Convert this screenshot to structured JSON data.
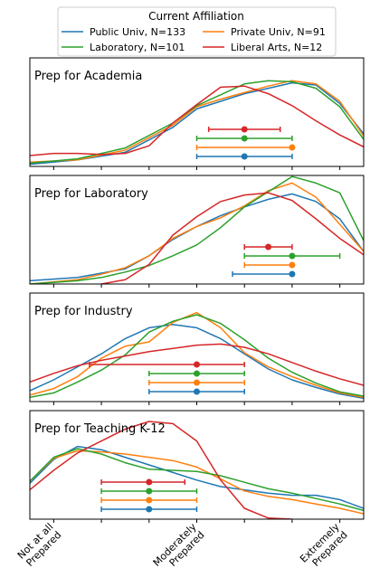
{
  "legend": {
    "title": "Current Affiliation",
    "placement": "top-center",
    "entries": [
      {
        "label": "Public Univ, N=133",
        "color": "#1f77b4"
      },
      {
        "label": "Private Univ, N=91",
        "color": "#ff7f0e"
      },
      {
        "label": "Laboratory, N=101",
        "color": "#2ca02c"
      },
      {
        "label": "Liberal Arts, N=12",
        "color": "#d62728"
      }
    ]
  },
  "chart_data": {
    "type": "line",
    "subtype": "density curves with mean and error bars, stacked panels sharing x axis",
    "xlim": [
      0.0,
      7.0
    ],
    "x_ticks": [
      0.5,
      1.5,
      2.5,
      3.5,
      4.5,
      5.5,
      6.5
    ],
    "x_tick_labels": [
      {
        "x": 0.5,
        "lines": [
          "Not at all",
          "Prepared"
        ]
      },
      {
        "x": 3.5,
        "lines": [
          "Moderately",
          "Prepared"
        ]
      },
      {
        "x": 6.5,
        "lines": [
          "Extremely",
          "Prepared"
        ]
      }
    ],
    "grid": false,
    "series_colors": {
      "Public Univ": "#1f77b4",
      "Private Univ": "#ff7f0e",
      "Laboratory": "#2ca02c",
      "Liberal Arts": "#d62728"
    },
    "panels": [
      {
        "title": "Prep for Academia",
        "ylim": [
          0,
          1
        ],
        "curves": [
          {
            "name": "Public Univ",
            "x": [
              0,
              1,
              2,
              3,
              3.5,
              4,
              4.5,
              5,
              5.5,
              6,
              6.5,
              7
            ],
            "y": [
              0.02,
              0.06,
              0.13,
              0.36,
              0.53,
              0.6,
              0.67,
              0.72,
              0.77,
              0.75,
              0.58,
              0.3
            ]
          },
          {
            "name": "Private Univ",
            "x": [
              0,
              1,
              2,
              3,
              3.5,
              4,
              4.5,
              5,
              5.5,
              6,
              6.5,
              7
            ],
            "y": [
              0.04,
              0.06,
              0.15,
              0.38,
              0.55,
              0.62,
              0.68,
              0.74,
              0.79,
              0.76,
              0.6,
              0.28
            ]
          },
          {
            "name": "Laboratory",
            "x": [
              0,
              1,
              2,
              3,
              3.5,
              4,
              4.5,
              5,
              5.5,
              6,
              6.5,
              7
            ],
            "y": [
              0.03,
              0.07,
              0.17,
              0.4,
              0.56,
              0.66,
              0.76,
              0.79,
              0.78,
              0.72,
              0.55,
              0.25
            ]
          },
          {
            "name": "Liberal Arts",
            "x": [
              0,
              0.5,
              1,
              1.5,
              2,
              2.5,
              3,
              3.5,
              4,
              4.5,
              5,
              5.5,
              6,
              6.5,
              7
            ],
            "y": [
              0.1,
              0.12,
              0.12,
              0.11,
              0.12,
              0.19,
              0.4,
              0.57,
              0.73,
              0.74,
              0.67,
              0.56,
              0.42,
              0.29,
              0.18
            ]
          }
        ],
        "markers": [
          {
            "name": "Liberal Arts",
            "mean": 4.5,
            "low": 3.75,
            "high": 5.25
          },
          {
            "name": "Laboratory",
            "mean": 4.5,
            "low": 3.5,
            "high": 5.5
          },
          {
            "name": "Private Univ",
            "mean": 5.5,
            "low": 3.5,
            "high": 5.5
          },
          {
            "name": "Public Univ",
            "mean": 4.5,
            "low": 3.5,
            "high": 5.5
          }
        ]
      },
      {
        "title": "Prep for Laboratory",
        "ylim": [
          0,
          1
        ],
        "curves": [
          {
            "name": "Public Univ",
            "x": [
              0,
              1,
              2,
              2.5,
              3,
              3.5,
              4,
              4.5,
              5,
              5.5,
              6,
              6.5,
              7
            ],
            "y": [
              0.03,
              0.06,
              0.14,
              0.26,
              0.41,
              0.53,
              0.63,
              0.71,
              0.78,
              0.83,
              0.76,
              0.6,
              0.3
            ]
          },
          {
            "name": "Private Univ",
            "x": [
              0,
              1,
              1.5,
              2,
              2.5,
              3,
              3.5,
              4,
              4.5,
              5,
              5.5,
              6,
              6.5,
              7
            ],
            "y": [
              0.0,
              0.04,
              0.09,
              0.15,
              0.26,
              0.42,
              0.53,
              0.61,
              0.72,
              0.86,
              0.93,
              0.8,
              0.55,
              0.3
            ]
          },
          {
            "name": "Laboratory",
            "x": [
              0,
              1,
              1.5,
              2,
              2.5,
              3,
              3.5,
              4,
              4.5,
              5,
              5.5,
              6,
              6.5,
              7
            ],
            "y": [
              0.0,
              0.03,
              0.06,
              0.11,
              0.17,
              0.26,
              0.36,
              0.52,
              0.71,
              0.85,
              0.99,
              0.93,
              0.84,
              0.4
            ]
          },
          {
            "name": "Liberal Arts",
            "x": [
              1.5,
              2,
              2.5,
              3,
              3.5,
              4,
              4.5,
              5,
              5.5,
              6,
              6.5,
              7
            ],
            "y": [
              0.0,
              0.04,
              0.18,
              0.45,
              0.62,
              0.76,
              0.82,
              0.84,
              0.77,
              0.6,
              0.42,
              0.27
            ]
          }
        ],
        "markers": [
          {
            "name": "Liberal Arts",
            "mean": 5.0,
            "low": 4.5,
            "high": 5.5
          },
          {
            "name": "Laboratory",
            "mean": 5.5,
            "low": 4.5,
            "high": 6.5
          },
          {
            "name": "Private Univ",
            "mean": 5.5,
            "low": 4.5,
            "high": 5.5
          },
          {
            "name": "Public Univ",
            "mean": 5.5,
            "low": 4.25,
            "high": 5.5
          }
        ]
      },
      {
        "title": "Prep for Industry",
        "ylim": [
          0,
          1
        ],
        "curves": [
          {
            "name": "Public Univ",
            "x": [
              0,
              0.5,
              1,
              1.5,
              2,
              2.5,
              3,
              3.5,
              4,
              4.5,
              5,
              5.5,
              6,
              6.5,
              7
            ],
            "y": [
              0.1,
              0.2,
              0.32,
              0.44,
              0.58,
              0.68,
              0.71,
              0.68,
              0.58,
              0.44,
              0.3,
              0.2,
              0.13,
              0.07,
              0.03
            ]
          },
          {
            "name": "Private Univ",
            "x": [
              0,
              0.5,
              1,
              1.5,
              2,
              2.5,
              3,
              3.5,
              4,
              4.5,
              5,
              5.5,
              6,
              6.5,
              7
            ],
            "y": [
              0.06,
              0.12,
              0.23,
              0.4,
              0.51,
              0.55,
              0.73,
              0.82,
              0.68,
              0.45,
              0.32,
              0.23,
              0.15,
              0.08,
              0.04
            ]
          },
          {
            "name": "Laboratory",
            "x": [
              0,
              0.5,
              1,
              1.5,
              2,
              2.5,
              3,
              3.5,
              4,
              4.5,
              5,
              5.5,
              6,
              6.5,
              7
            ],
            "y": [
              0.04,
              0.08,
              0.18,
              0.29,
              0.43,
              0.64,
              0.74,
              0.8,
              0.72,
              0.57,
              0.4,
              0.27,
              0.17,
              0.09,
              0.05
            ]
          },
          {
            "name": "Liberal Arts",
            "x": [
              0,
              0.5,
              1,
              1.5,
              2,
              2.5,
              3,
              3.5,
              4,
              4.5,
              5,
              5.5,
              6,
              6.5,
              7
            ],
            "y": [
              0.18,
              0.26,
              0.33,
              0.38,
              0.42,
              0.46,
              0.49,
              0.52,
              0.53,
              0.5,
              0.44,
              0.36,
              0.28,
              0.21,
              0.15
            ]
          }
        ],
        "markers": [
          {
            "name": "Liberal Arts",
            "mean": 3.5,
            "low": 1.25,
            "high": 4.5
          },
          {
            "name": "Laboratory",
            "mean": 3.5,
            "low": 2.5,
            "high": 4.5
          },
          {
            "name": "Private Univ",
            "mean": 3.5,
            "low": 2.5,
            "high": 4.5
          },
          {
            "name": "Public Univ",
            "mean": 3.5,
            "low": 2.5,
            "high": 4.5
          }
        ]
      },
      {
        "title": "Prep for Teaching K-12",
        "ylim": [
          0,
          1
        ],
        "curves": [
          {
            "name": "Public Univ",
            "x": [
              0,
              0.5,
              1,
              1.5,
              2,
              2.5,
              3,
              3.5,
              4,
              4.5,
              5,
              5.5,
              6,
              6.5,
              7
            ],
            "y": [
              0.33,
              0.55,
              0.67,
              0.64,
              0.57,
              0.5,
              0.43,
              0.36,
              0.3,
              0.27,
              0.24,
              0.22,
              0.22,
              0.18,
              0.1
            ]
          },
          {
            "name": "Private Univ",
            "x": [
              0,
              0.5,
              1,
              1.5,
              2,
              2.5,
              3,
              3.5,
              4,
              4.5,
              5,
              5.5,
              6,
              6.5,
              7
            ],
            "y": [
              0.35,
              0.56,
              0.63,
              0.62,
              0.6,
              0.57,
              0.54,
              0.48,
              0.37,
              0.26,
              0.21,
              0.18,
              0.14,
              0.1,
              0.05
            ]
          },
          {
            "name": "Laboratory",
            "x": [
              0,
              0.5,
              1,
              1.5,
              2,
              2.5,
              3,
              3.5,
              4,
              4.5,
              5,
              5.5,
              6,
              6.5,
              7
            ],
            "y": [
              0.35,
              0.57,
              0.65,
              0.6,
              0.52,
              0.46,
              0.45,
              0.44,
              0.4,
              0.34,
              0.28,
              0.24,
              0.19,
              0.14,
              0.08
            ]
          },
          {
            "name": "Liberal Arts",
            "x": [
              0,
              0.5,
              1,
              1.5,
              2,
              2.5,
              3,
              3.5,
              4,
              4.5,
              5,
              5.5
            ],
            "y": [
              0.27,
              0.45,
              0.61,
              0.72,
              0.83,
              0.9,
              0.88,
              0.72,
              0.36,
              0.1,
              0.01,
              0.0
            ]
          }
        ],
        "markers": [
          {
            "name": "Liberal Arts",
            "mean": 2.5,
            "low": 1.5,
            "high": 3.25
          },
          {
            "name": "Laboratory",
            "mean": 2.5,
            "low": 1.5,
            "high": 3.5
          },
          {
            "name": "Private Univ",
            "mean": 2.5,
            "low": 1.5,
            "high": 3.5
          },
          {
            "name": "Public Univ",
            "mean": 2.5,
            "low": 1.5,
            "high": 3.5
          }
        ]
      }
    ]
  }
}
